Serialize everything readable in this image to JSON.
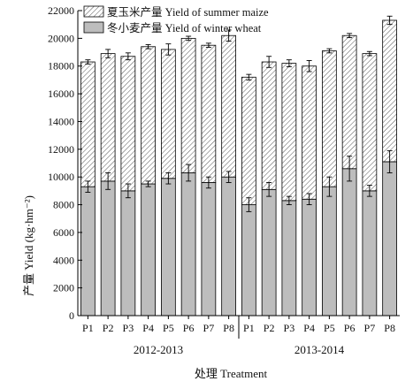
{
  "chart_data": {
    "type": "bar",
    "stacked": true,
    "title": "",
    "xlabel": "处理 Treatment",
    "ylabel": "产量 Yield (kg·hm⁻²)",
    "ylim": [
      0,
      22000
    ],
    "yticks": [
      0,
      2000,
      4000,
      6000,
      8000,
      10000,
      12000,
      14000,
      16000,
      18000,
      20000,
      22000
    ],
    "grid": false,
    "legend_position": "top-left",
    "groups": [
      {
        "name": "2012-2013",
        "categories": [
          "P1",
          "P2",
          "P3",
          "P4",
          "P5",
          "P6",
          "P7",
          "P8"
        ]
      },
      {
        "name": "2013-2014",
        "categories": [
          "P1",
          "P2",
          "P3",
          "P4",
          "P5",
          "P6",
          "P7",
          "P8"
        ]
      }
    ],
    "categories": [
      "P1",
      "P2",
      "P3",
      "P4",
      "P5",
      "P6",
      "P7",
      "P8",
      "P1",
      "P2",
      "P3",
      "P4",
      "P5",
      "P6",
      "P7",
      "P8"
    ],
    "series": [
      {
        "name": "冬小麦产量 Yield of winter wheat",
        "color": "#bdbdbd",
        "pattern": "solid",
        "values": [
          9300,
          9700,
          9000,
          9500,
          9900,
          10300,
          9600,
          10000,
          8000,
          9100,
          8300,
          8400,
          9300,
          10600,
          9000,
          11100
        ],
        "errors": [
          400,
          600,
          500,
          200,
          400,
          600,
          400,
          400,
          500,
          500,
          300,
          400,
          700,
          900,
          400,
          800
        ]
      },
      {
        "name": "夏玉米产量 Yield of summer maize",
        "color": "#ffffff",
        "pattern": "hatched",
        "values": [
          9000,
          9200,
          9700,
          9900,
          9300,
          9700,
          9900,
          10200,
          9200,
          9200,
          9900,
          9600,
          9800,
          9600,
          9900,
          10200
        ],
        "errors": [
          150,
          300,
          250,
          150,
          400,
          150,
          150,
          400,
          200,
          400,
          250,
          400,
          150,
          150,
          150,
          300
        ]
      }
    ]
  }
}
